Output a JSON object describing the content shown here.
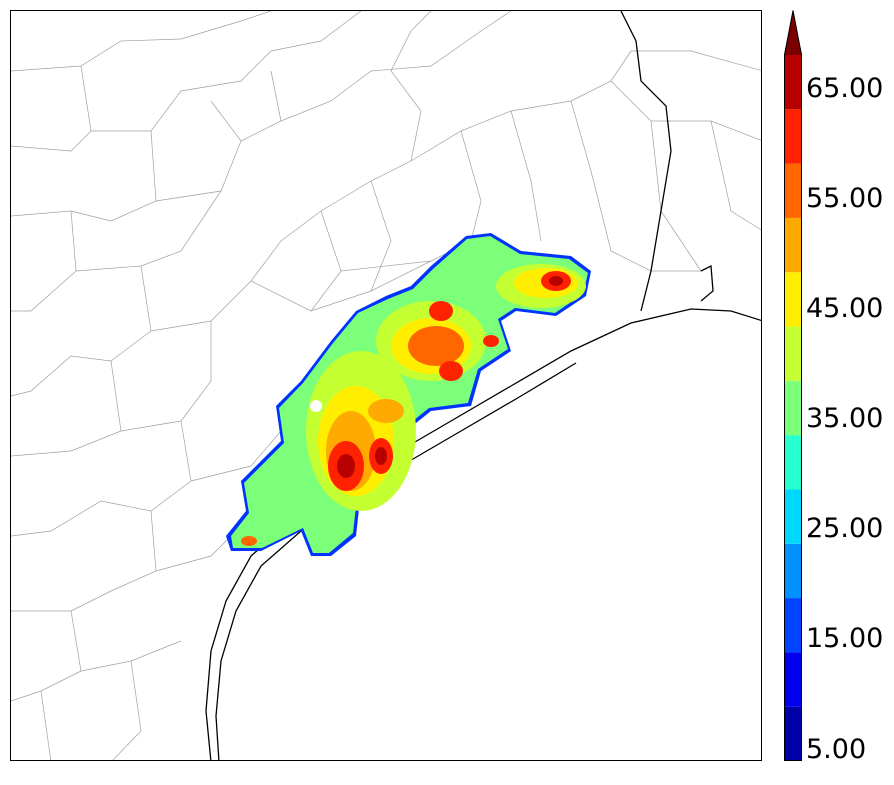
{
  "colorbar": {
    "labels": [
      "65.00",
      "55.00",
      "45.00",
      "35.00",
      "25.00",
      "15.00",
      "5.00"
    ],
    "min": 5,
    "max": 70,
    "extend": "max",
    "bands": [
      {
        "from": 5,
        "to": 10,
        "color": "#0000a8"
      },
      {
        "from": 10,
        "to": 15,
        "color": "#0000ee"
      },
      {
        "from": 15,
        "to": 20,
        "color": "#0044ff"
      },
      {
        "from": 20,
        "to": 25,
        "color": "#0090ff"
      },
      {
        "from": 25,
        "to": 30,
        "color": "#00d8ff"
      },
      {
        "from": 30,
        "to": 35,
        "color": "#26ffd0"
      },
      {
        "from": 35,
        "to": 40,
        "color": "#7cff79"
      },
      {
        "from": 40,
        "to": 45,
        "color": "#c4ff32"
      },
      {
        "from": 45,
        "to": 50,
        "color": "#ffee00"
      },
      {
        "from": 50,
        "to": 55,
        "color": "#ffaa00"
      },
      {
        "from": 55,
        "to": 60,
        "color": "#ff6600"
      },
      {
        "from": 60,
        "to": 65,
        "color": "#ff2200"
      },
      {
        "from": 65,
        "to": 70,
        "color": "#b80000"
      }
    ],
    "extend_color": "#7a0000"
  },
  "map": {
    "region": "Texas Gulf Coast counties",
    "ocean_color": "#ffffff",
    "county_line_color": "#9a9a9a",
    "coast_line_color": "#000000"
  }
}
